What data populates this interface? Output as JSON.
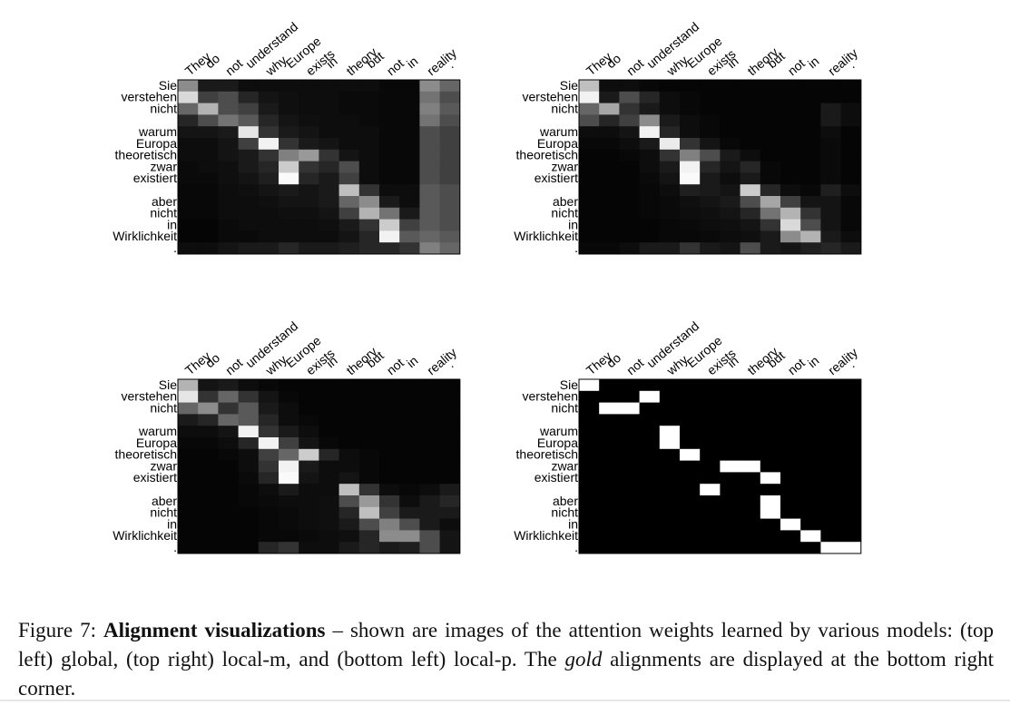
{
  "figure": {
    "source_words": [
      "They",
      "do",
      "not",
      "understand",
      "why",
      "Europe",
      "exists",
      "in",
      "theory",
      "but",
      "not",
      "in",
      "reality",
      "."
    ],
    "target_words": [
      "Sie",
      "verstehen",
      "nicht",
      "",
      "warum",
      "Europa",
      "theoretisch",
      "zwar",
      "existiert",
      "",
      "aber",
      "nicht",
      "in",
      "Wirklichkeit",
      "."
    ]
  },
  "chart_data": [
    {
      "type": "heatmap",
      "panel": "top-left",
      "model": "global",
      "value_range": [
        0,
        1
      ],
      "values": [
        [
          0.55,
          0.1,
          0.1,
          0.05,
          0.05,
          0.05,
          0.05,
          0.05,
          0.05,
          0.05,
          0.03,
          0.03,
          0.55,
          0.4
        ],
        [
          0.85,
          0.25,
          0.3,
          0.15,
          0.08,
          0.06,
          0.05,
          0.05,
          0.04,
          0.04,
          0.03,
          0.03,
          0.45,
          0.3
        ],
        [
          0.4,
          0.7,
          0.3,
          0.25,
          0.1,
          0.06,
          0.05,
          0.05,
          0.04,
          0.04,
          0.03,
          0.03,
          0.5,
          0.35
        ],
        [
          0.15,
          0.3,
          0.45,
          0.35,
          0.15,
          0.08,
          0.06,
          0.05,
          0.05,
          0.04,
          0.03,
          0.03,
          0.45,
          0.3
        ],
        [
          0.08,
          0.08,
          0.1,
          0.9,
          0.2,
          0.1,
          0.08,
          0.05,
          0.05,
          0.05,
          0.03,
          0.03,
          0.3,
          0.25
        ],
        [
          0.05,
          0.05,
          0.08,
          0.25,
          0.95,
          0.2,
          0.1,
          0.08,
          0.05,
          0.05,
          0.03,
          0.03,
          0.3,
          0.25
        ],
        [
          0.05,
          0.05,
          0.08,
          0.1,
          0.2,
          0.5,
          0.6,
          0.2,
          0.08,
          0.05,
          0.03,
          0.03,
          0.3,
          0.25
        ],
        [
          0.04,
          0.05,
          0.06,
          0.1,
          0.15,
          0.8,
          0.2,
          0.15,
          0.3,
          0.05,
          0.03,
          0.03,
          0.3,
          0.25
        ],
        [
          0.04,
          0.04,
          0.06,
          0.08,
          0.12,
          0.98,
          0.15,
          0.1,
          0.25,
          0.05,
          0.03,
          0.03,
          0.3,
          0.25
        ],
        [
          0.03,
          0.03,
          0.05,
          0.06,
          0.08,
          0.1,
          0.08,
          0.1,
          0.75,
          0.2,
          0.05,
          0.05,
          0.35,
          0.3
        ],
        [
          0.03,
          0.03,
          0.05,
          0.05,
          0.06,
          0.08,
          0.08,
          0.1,
          0.4,
          0.55,
          0.1,
          0.05,
          0.35,
          0.3
        ],
        [
          0.03,
          0.03,
          0.05,
          0.05,
          0.05,
          0.06,
          0.06,
          0.08,
          0.25,
          0.7,
          0.45,
          0.1,
          0.35,
          0.3
        ],
        [
          0.02,
          0.02,
          0.04,
          0.05,
          0.05,
          0.05,
          0.05,
          0.06,
          0.1,
          0.2,
          0.8,
          0.25,
          0.35,
          0.3
        ],
        [
          0.02,
          0.02,
          0.04,
          0.04,
          0.05,
          0.05,
          0.05,
          0.05,
          0.08,
          0.15,
          0.95,
          0.35,
          0.4,
          0.35
        ],
        [
          0.05,
          0.05,
          0.08,
          0.1,
          0.1,
          0.15,
          0.1,
          0.1,
          0.12,
          0.15,
          0.15,
          0.2,
          0.5,
          0.4
        ]
      ]
    },
    {
      "type": "heatmap",
      "panel": "top-right",
      "model": "local-m",
      "value_range": [
        0,
        1
      ],
      "values": [
        [
          0.75,
          0.05,
          0.05,
          0.03,
          0.02,
          0.02,
          0.02,
          0.02,
          0.02,
          0.02,
          0.02,
          0.02,
          0.02,
          0.02
        ],
        [
          0.95,
          0.1,
          0.3,
          0.15,
          0.05,
          0.03,
          0.02,
          0.02,
          0.02,
          0.02,
          0.02,
          0.02,
          0.02,
          0.02
        ],
        [
          0.4,
          0.65,
          0.2,
          0.1,
          0.05,
          0.03,
          0.02,
          0.02,
          0.02,
          0.02,
          0.02,
          0.02,
          0.1,
          0.05
        ],
        [
          0.3,
          0.15,
          0.25,
          0.55,
          0.1,
          0.05,
          0.03,
          0.02,
          0.02,
          0.02,
          0.02,
          0.02,
          0.1,
          0.05
        ],
        [
          0.05,
          0.05,
          0.08,
          0.95,
          0.15,
          0.05,
          0.03,
          0.02,
          0.02,
          0.02,
          0.02,
          0.02,
          0.05,
          0.02
        ],
        [
          0.03,
          0.03,
          0.05,
          0.1,
          0.92,
          0.2,
          0.08,
          0.03,
          0.02,
          0.02,
          0.02,
          0.02,
          0.04,
          0.02
        ],
        [
          0.02,
          0.02,
          0.03,
          0.05,
          0.2,
          0.5,
          0.3,
          0.1,
          0.05,
          0.02,
          0.02,
          0.02,
          0.04,
          0.02
        ],
        [
          0.02,
          0.02,
          0.02,
          0.05,
          0.1,
          0.95,
          0.15,
          0.08,
          0.15,
          0.03,
          0.02,
          0.02,
          0.04,
          0.02
        ],
        [
          0.02,
          0.02,
          0.02,
          0.04,
          0.08,
          0.98,
          0.1,
          0.05,
          0.1,
          0.03,
          0.02,
          0.02,
          0.04,
          0.02
        ],
        [
          0.02,
          0.02,
          0.02,
          0.03,
          0.05,
          0.12,
          0.1,
          0.08,
          0.8,
          0.15,
          0.05,
          0.03,
          0.12,
          0.05
        ],
        [
          0.02,
          0.02,
          0.02,
          0.03,
          0.04,
          0.06,
          0.08,
          0.1,
          0.3,
          0.65,
          0.25,
          0.08,
          0.08,
          0.03
        ],
        [
          0.02,
          0.02,
          0.02,
          0.03,
          0.04,
          0.05,
          0.06,
          0.08,
          0.15,
          0.45,
          0.7,
          0.2,
          0.08,
          0.03
        ],
        [
          0.02,
          0.02,
          0.02,
          0.02,
          0.03,
          0.04,
          0.05,
          0.06,
          0.08,
          0.2,
          0.85,
          0.3,
          0.08,
          0.03
        ],
        [
          0.02,
          0.02,
          0.02,
          0.02,
          0.03,
          0.03,
          0.04,
          0.05,
          0.06,
          0.1,
          0.55,
          0.7,
          0.1,
          0.05
        ],
        [
          0.03,
          0.03,
          0.05,
          0.1,
          0.1,
          0.2,
          0.1,
          0.08,
          0.3,
          0.1,
          0.08,
          0.12,
          0.15,
          0.1
        ]
      ]
    },
    {
      "type": "heatmap",
      "panel": "bottom-left",
      "model": "local-p",
      "value_range": [
        0,
        1
      ],
      "values": [
        [
          0.7,
          0.08,
          0.1,
          0.05,
          0.03,
          0.02,
          0.02,
          0.02,
          0.02,
          0.02,
          0.02,
          0.02,
          0.02,
          0.02
        ],
        [
          0.9,
          0.2,
          0.4,
          0.2,
          0.08,
          0.03,
          0.02,
          0.02,
          0.02,
          0.02,
          0.02,
          0.02,
          0.02,
          0.02
        ],
        [
          0.4,
          0.55,
          0.2,
          0.35,
          0.1,
          0.05,
          0.02,
          0.02,
          0.02,
          0.02,
          0.02,
          0.02,
          0.02,
          0.02
        ],
        [
          0.1,
          0.15,
          0.4,
          0.35,
          0.15,
          0.05,
          0.03,
          0.02,
          0.02,
          0.02,
          0.02,
          0.02,
          0.02,
          0.02
        ],
        [
          0.05,
          0.05,
          0.08,
          0.95,
          0.2,
          0.1,
          0.05,
          0.02,
          0.02,
          0.02,
          0.02,
          0.02,
          0.02,
          0.02
        ],
        [
          0.03,
          0.03,
          0.05,
          0.15,
          0.95,
          0.25,
          0.08,
          0.03,
          0.02,
          0.02,
          0.02,
          0.02,
          0.02,
          0.02
        ],
        [
          0.02,
          0.02,
          0.03,
          0.05,
          0.25,
          0.4,
          0.8,
          0.15,
          0.05,
          0.03,
          0.02,
          0.02,
          0.02,
          0.02
        ],
        [
          0.02,
          0.02,
          0.02,
          0.05,
          0.2,
          0.95,
          0.1,
          0.05,
          0.05,
          0.03,
          0.02,
          0.02,
          0.02,
          0.02
        ],
        [
          0.02,
          0.02,
          0.02,
          0.04,
          0.15,
          0.98,
          0.08,
          0.05,
          0.08,
          0.03,
          0.02,
          0.02,
          0.02,
          0.02
        ],
        [
          0.02,
          0.02,
          0.02,
          0.03,
          0.05,
          0.1,
          0.05,
          0.05,
          0.75,
          0.2,
          0.05,
          0.03,
          0.05,
          0.1
        ],
        [
          0.02,
          0.02,
          0.02,
          0.03,
          0.04,
          0.05,
          0.05,
          0.06,
          0.3,
          0.6,
          0.2,
          0.05,
          0.1,
          0.15
        ],
        [
          0.02,
          0.02,
          0.02,
          0.02,
          0.03,
          0.04,
          0.05,
          0.06,
          0.15,
          0.75,
          0.25,
          0.1,
          0.1,
          0.1
        ],
        [
          0.02,
          0.02,
          0.02,
          0.02,
          0.03,
          0.04,
          0.05,
          0.06,
          0.1,
          0.3,
          0.5,
          0.3,
          0.1,
          0.05
        ],
        [
          0.02,
          0.02,
          0.02,
          0.02,
          0.03,
          0.03,
          0.04,
          0.05,
          0.06,
          0.15,
          0.55,
          0.55,
          0.3,
          0.08
        ],
        [
          0.02,
          0.02,
          0.02,
          0.02,
          0.15,
          0.2,
          0.05,
          0.05,
          0.1,
          0.15,
          0.1,
          0.12,
          0.3,
          0.08
        ]
      ]
    },
    {
      "type": "heatmap",
      "panel": "bottom-right",
      "model": "gold",
      "value_range": [
        0,
        1
      ],
      "values": [
        [
          1,
          0,
          0,
          0,
          0,
          0,
          0,
          0,
          0,
          0,
          0,
          0,
          0,
          0
        ],
        [
          0,
          0,
          0,
          1,
          0,
          0,
          0,
          0,
          0,
          0,
          0,
          0,
          0,
          0
        ],
        [
          0,
          1,
          1,
          0,
          0,
          0,
          0,
          0,
          0,
          0,
          0,
          0,
          0,
          0
        ],
        [
          0,
          0,
          0,
          0,
          0,
          0,
          0,
          0,
          0,
          0,
          0,
          0,
          0,
          0
        ],
        [
          0,
          0,
          0,
          0,
          1,
          0,
          0,
          0,
          0,
          0,
          0,
          0,
          0,
          0
        ],
        [
          0,
          0,
          0,
          0,
          1,
          0,
          0,
          0,
          0,
          0,
          0,
          0,
          0,
          0
        ],
        [
          0,
          0,
          0,
          0,
          0,
          1,
          0,
          0,
          0,
          0,
          0,
          0,
          0,
          0
        ],
        [
          0,
          0,
          0,
          0,
          0,
          0,
          0,
          1,
          1,
          0,
          0,
          0,
          0,
          0
        ],
        [
          0,
          0,
          0,
          0,
          0,
          0,
          0,
          0,
          0,
          1,
          0,
          0,
          0,
          0
        ],
        [
          0,
          0,
          0,
          0,
          0,
          0,
          1,
          0,
          0,
          0,
          0,
          0,
          0,
          0
        ],
        [
          0,
          0,
          0,
          0,
          0,
          0,
          0,
          0,
          0,
          1,
          0,
          0,
          0,
          0
        ],
        [
          0,
          0,
          0,
          0,
          0,
          0,
          0,
          0,
          0,
          1,
          0,
          0,
          0,
          0
        ],
        [
          0,
          0,
          0,
          0,
          0,
          0,
          0,
          0,
          0,
          0,
          1,
          0,
          0,
          0
        ],
        [
          0,
          0,
          0,
          0,
          0,
          0,
          0,
          0,
          0,
          0,
          0,
          1,
          0,
          0
        ],
        [
          0,
          0,
          0,
          0,
          0,
          0,
          0,
          0,
          0,
          0,
          0,
          0,
          1,
          1
        ]
      ]
    }
  ],
  "caption": {
    "label": "Figure 7:",
    "bold_title": "Alignment visualizations",
    "text_1": " – shown are images of the attention weights learned by various models: (top left) global, (top right) local-m, and (bottom left) local-p. The ",
    "italic_word": "gold",
    "text_2": " alignments are displayed at the bottom right corner."
  }
}
